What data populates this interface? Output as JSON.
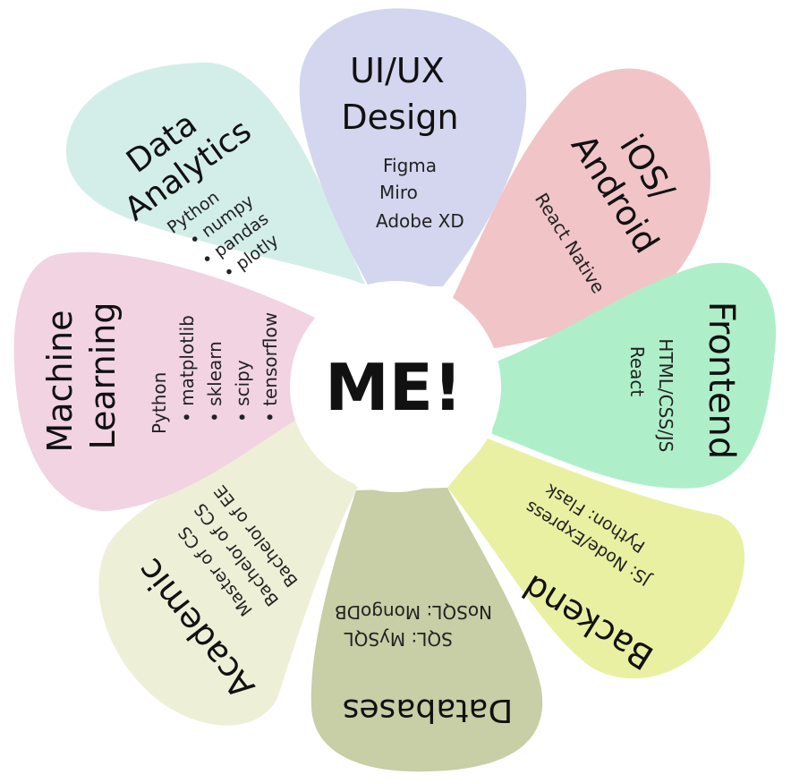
{
  "center": {
    "label": "ME!"
  },
  "petals": {
    "uiux": {
      "color": "#d3d6ee",
      "title": [
        "UI/UX",
        "Design"
      ],
      "items": [
        "Figma",
        "Miro",
        "Adobe XD"
      ]
    },
    "mobile": {
      "color": "#f1c4c7",
      "title": [
        "iOS/",
        "Android"
      ],
      "items": [
        "React Native"
      ]
    },
    "frontend": {
      "color": "#aeefc9",
      "title": [
        "Frontend"
      ],
      "items": [
        "HTML/CSS/JS",
        "React"
      ]
    },
    "backend": {
      "color": "#e9f0a2",
      "title": [
        "Backend"
      ],
      "items": [
        "JS: Node/Express",
        "Python: Flask"
      ]
    },
    "databases": {
      "color": "#c8cea5",
      "title": [
        "Databases"
      ],
      "items": [
        "SQL: MySQL",
        "NoSQL: MongoDB"
      ]
    },
    "academic": {
      "color": "#eeefd7",
      "title": [
        "Academic"
      ],
      "items": [
        "Master of CS",
        "Bachelor of CS",
        "Bachelor of EE"
      ]
    },
    "ml": {
      "color": "#f1d3e2",
      "title": [
        "Machine",
        "Learning"
      ],
      "items": [
        "Python",
        "• matplotlib",
        "• sklearn",
        "• scipy",
        "• tensorflow"
      ]
    },
    "analytics": {
      "color": "#d3eee8",
      "title": [
        "Data",
        "Analytics"
      ],
      "items": [
        "Python",
        "• numpy",
        "• pandas",
        "• plotly"
      ]
    }
  }
}
